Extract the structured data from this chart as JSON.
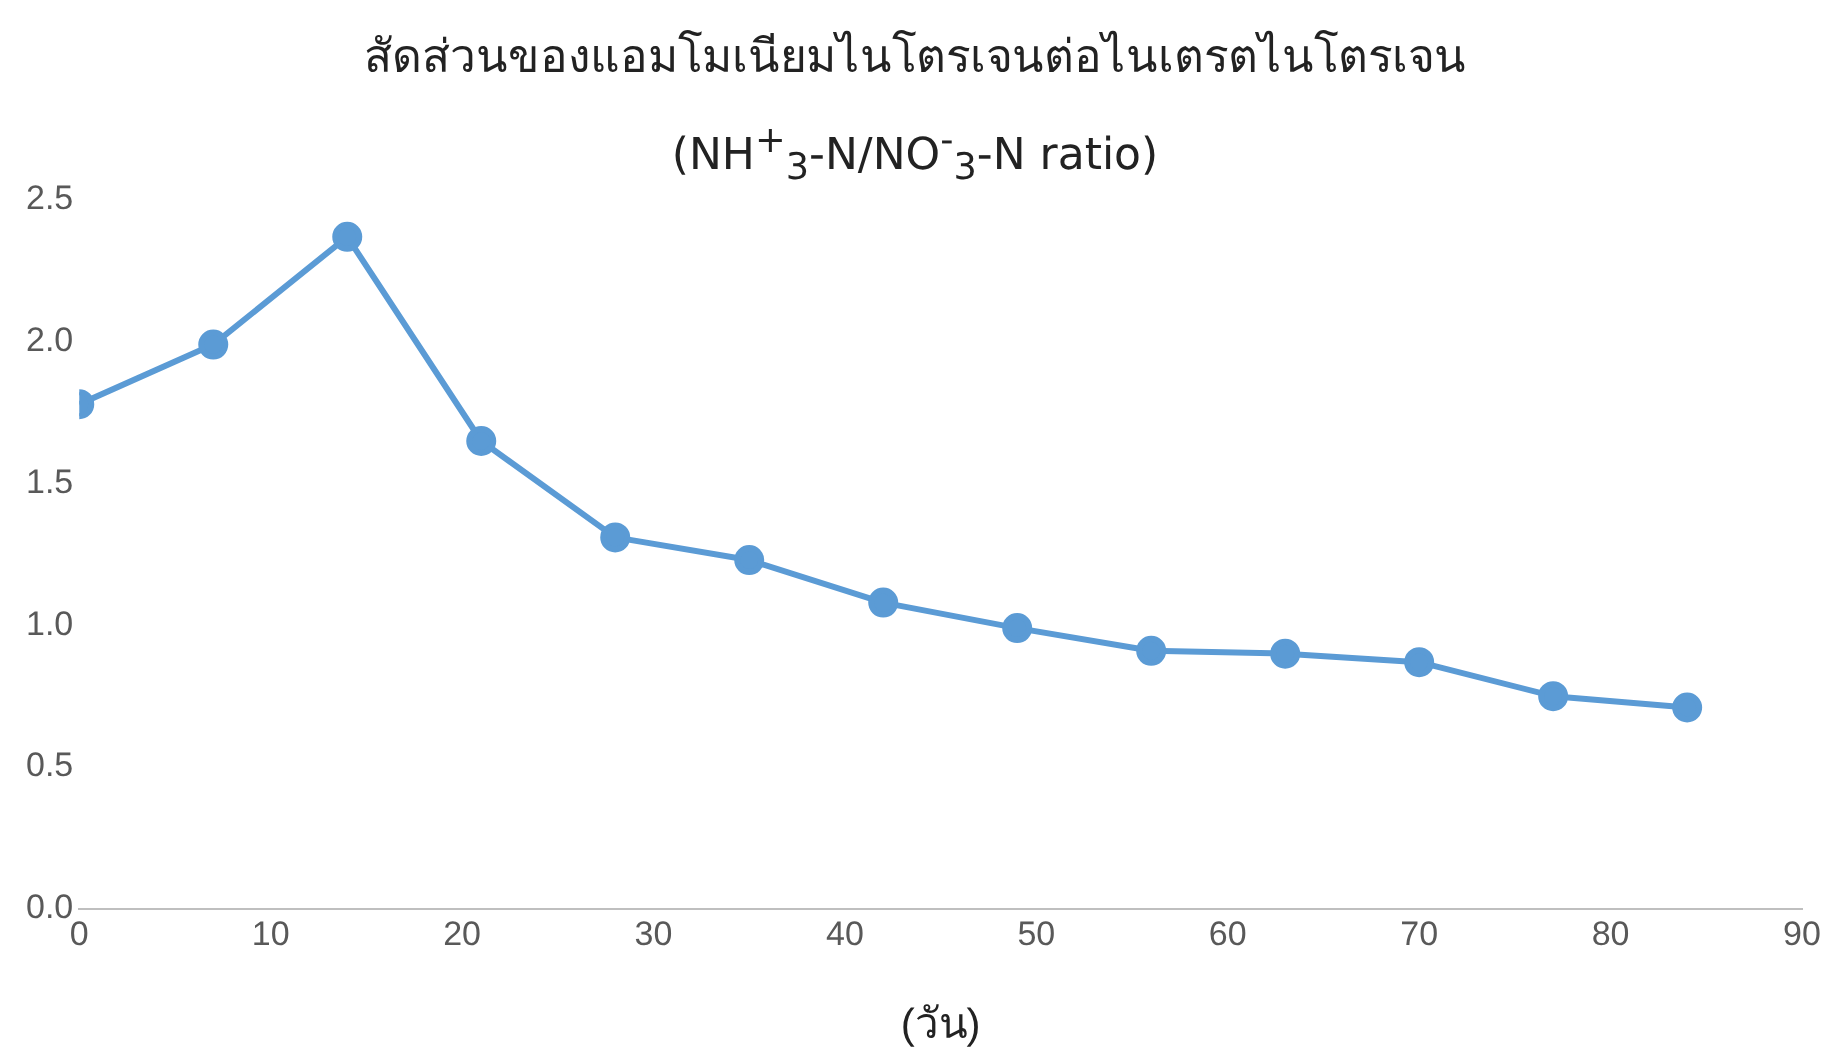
{
  "chart_data": {
    "type": "line",
    "title": "สัดส่วนของแอมโมเนียมไนโตรเจนต่อไนเตรตไนโตรเจน",
    "subtitle": "(NH$^{+}$$_{3}$-N/NO$^{-}$$_{3}$-N ratio)",
    "xlabel": "(วัน)",
    "x": [
      0,
      7,
      14,
      21,
      28,
      35,
      42,
      49,
      56,
      63,
      70,
      77,
      84
    ],
    "series": [
      {
        "color": "#5b9bd5",
        "values": [
          1.78,
          1.99,
          2.37,
          1.65,
          1.31,
          1.23,
          1.08,
          0.99,
          0.91,
          0.9,
          0.87,
          0.75,
          0.71
        ]
      }
    ],
    "xlim": [
      0,
      90
    ],
    "xticks": [
      0,
      10,
      20,
      30,
      40,
      50,
      60,
      70,
      80,
      90
    ],
    "ylim": [
      0,
      2.5
    ],
    "yticks": [
      {
        "value": 0,
        "label": "0.0"
      },
      {
        "value": 0.5,
        "label": "0.5"
      },
      {
        "value": 1,
        "label": "1.0"
      },
      {
        "value": 1.5,
        "label": "1.5"
      },
      {
        "value": 2,
        "label": "2.0"
      },
      {
        "value": 2.5,
        "label": "2.5"
      }
    ],
    "grid": false,
    "legend": false,
    "marker": "circle",
    "line_style": "solid"
  }
}
